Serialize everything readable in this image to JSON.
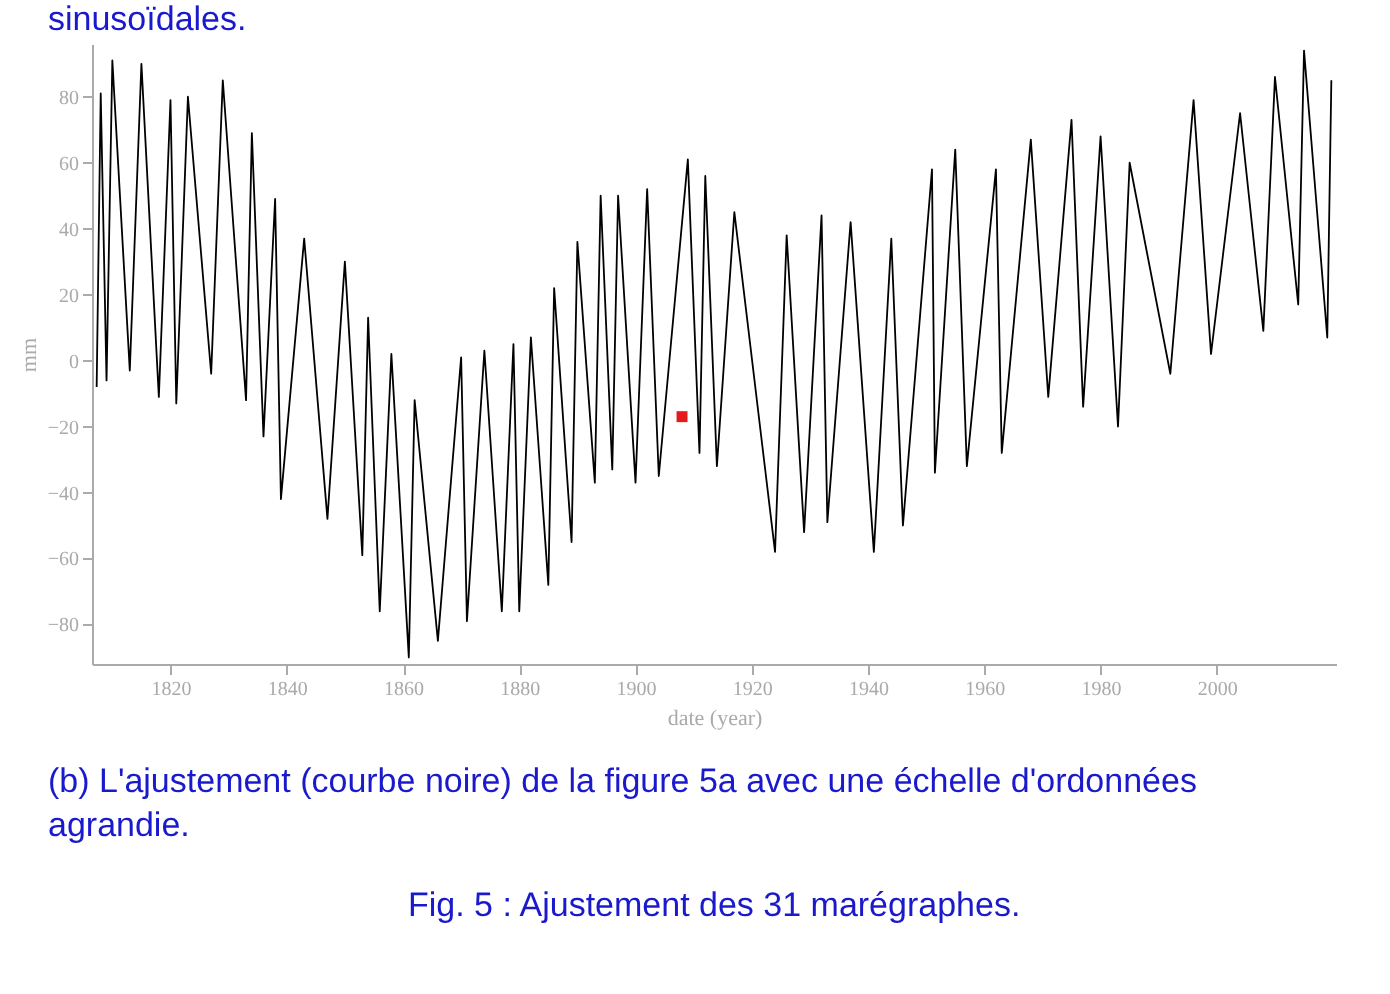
{
  "chart_data": {
    "type": "line",
    "xlabel": "date (year)",
    "ylabel": "mm",
    "xlim": [
      1806.5,
      2020.5
    ],
    "ylim": [
      -92,
      96
    ],
    "xticks": [
      1820,
      1840,
      1860,
      1880,
      1900,
      1920,
      1940,
      1960,
      1980,
      2000
    ],
    "yticks": [
      -80,
      -60,
      -40,
      -20,
      0,
      20,
      40,
      60,
      80
    ],
    "series": [
      {
        "type": "line",
        "color": "#000000",
        "x": [
          1807.3,
          1808,
          1809,
          1810,
          1813,
          1815,
          1818,
          1820,
          1821,
          1823,
          1827,
          1829,
          1833,
          1834,
          1836,
          1838,
          1839,
          1843,
          1847,
          1850,
          1853,
          1854,
          1856,
          1858,
          1861,
          1862,
          1866,
          1870,
          1871,
          1874,
          1877,
          1879,
          1880,
          1882,
          1885,
          1886,
          1889,
          1890,
          1893,
          1894,
          1896,
          1897,
          1900,
          1902,
          1904,
          1909,
          1911,
          1912,
          1914,
          1917,
          1924,
          1926,
          1929,
          1932,
          1933,
          1937,
          1941,
          1944,
          1946,
          1951,
          1951.5,
          1955,
          1957,
          1962,
          1963,
          1968,
          1971,
          1975,
          1977,
          1980,
          1983,
          1985,
          1992,
          1996,
          1999,
          2004,
          2008,
          2010,
          2014,
          2015,
          2019,
          2019.7
        ],
        "values": [
          -8,
          81,
          -6,
          91,
          -3,
          90,
          -11,
          79,
          -13,
          80,
          -4,
          85,
          -12,
          69,
          -23,
          49,
          -42,
          37,
          -48,
          30,
          -59,
          13,
          -76,
          2,
          -90,
          -12,
          -85,
          1,
          -79,
          3,
          -76,
          5,
          -76,
          7,
          -68,
          22,
          -55,
          36,
          -37,
          50,
          -33,
          50,
          -37,
          52,
          -35,
          61,
          -28,
          56,
          -32,
          45,
          -58,
          38,
          -52,
          44,
          -49,
          42,
          -58,
          37,
          -50,
          58,
          -34,
          64,
          -32,
          58,
          -28,
          67,
          -11,
          73,
          -14,
          68,
          -20,
          60,
          -4,
          79,
          2,
          75,
          9,
          86,
          17,
          94,
          7,
          85
        ]
      },
      {
        "type": "scatter",
        "color": "#e41a1c",
        "x": [
          1908
        ],
        "values": [
          -17
        ]
      }
    ],
    "annotations": [
      "sinusoïdales.",
      "(b) L'ajustement (courbe noire) de la figure 5a avec une échelle d'ordonnées agrandie.",
      "Fig. 5 : Ajustement des 31 marégraphes."
    ]
  }
}
